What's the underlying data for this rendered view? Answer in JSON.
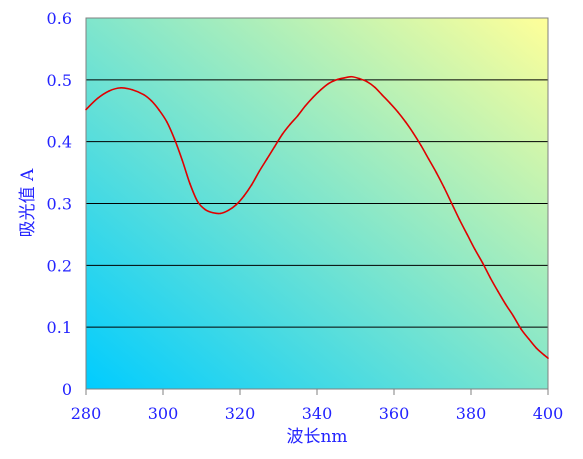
{
  "chart_data": {
    "type": "line",
    "title": "",
    "xlabel": "波长nm",
    "ylabel": "吸光值 A",
    "xlim": [
      280,
      400
    ],
    "ylim": [
      0,
      0.6
    ],
    "x_ticks": [
      280,
      300,
      320,
      340,
      360,
      380,
      400
    ],
    "y_ticks": [
      0,
      0.1,
      0.2,
      0.3,
      0.4,
      0.5,
      0.6
    ],
    "y_tick_labels": [
      "0",
      "0.1",
      "0.2",
      "0.3",
      "0.4",
      "0.5",
      "0.6"
    ],
    "grid": "horizontal",
    "legend": "none",
    "background_gradient": [
      "#00ccff",
      "#ffff99"
    ],
    "line_color": "#e00000",
    "text_color": "#2323ff",
    "series": [
      {
        "x": [
          280,
          283,
          286,
          289,
          292,
          295,
          297,
          299,
          301,
          303,
          305,
          307,
          309,
          311,
          313,
          315,
          317,
          319,
          321,
          323,
          325,
          327,
          329,
          331,
          333,
          335,
          337,
          339,
          341,
          343,
          345,
          347,
          349,
          351,
          353,
          355,
          357,
          359,
          361,
          363,
          365,
          367,
          369,
          371,
          373,
          375,
          377,
          379,
          381,
          383,
          385,
          387,
          389,
          391,
          393,
          395,
          397,
          399,
          400
        ],
        "y": [
          0.452,
          0.47,
          0.482,
          0.487,
          0.484,
          0.476,
          0.466,
          0.451,
          0.432,
          0.404,
          0.37,
          0.332,
          0.303,
          0.29,
          0.285,
          0.284,
          0.289,
          0.298,
          0.312,
          0.33,
          0.352,
          0.372,
          0.392,
          0.412,
          0.428,
          0.442,
          0.458,
          0.472,
          0.484,
          0.494,
          0.5,
          0.503,
          0.505,
          0.502,
          0.497,
          0.488,
          0.475,
          0.462,
          0.448,
          0.432,
          0.414,
          0.394,
          0.372,
          0.35,
          0.326,
          0.3,
          0.274,
          0.25,
          0.226,
          0.204,
          0.18,
          0.158,
          0.137,
          0.118,
          0.097,
          0.081,
          0.066,
          0.055,
          0.05
        ]
      }
    ]
  }
}
